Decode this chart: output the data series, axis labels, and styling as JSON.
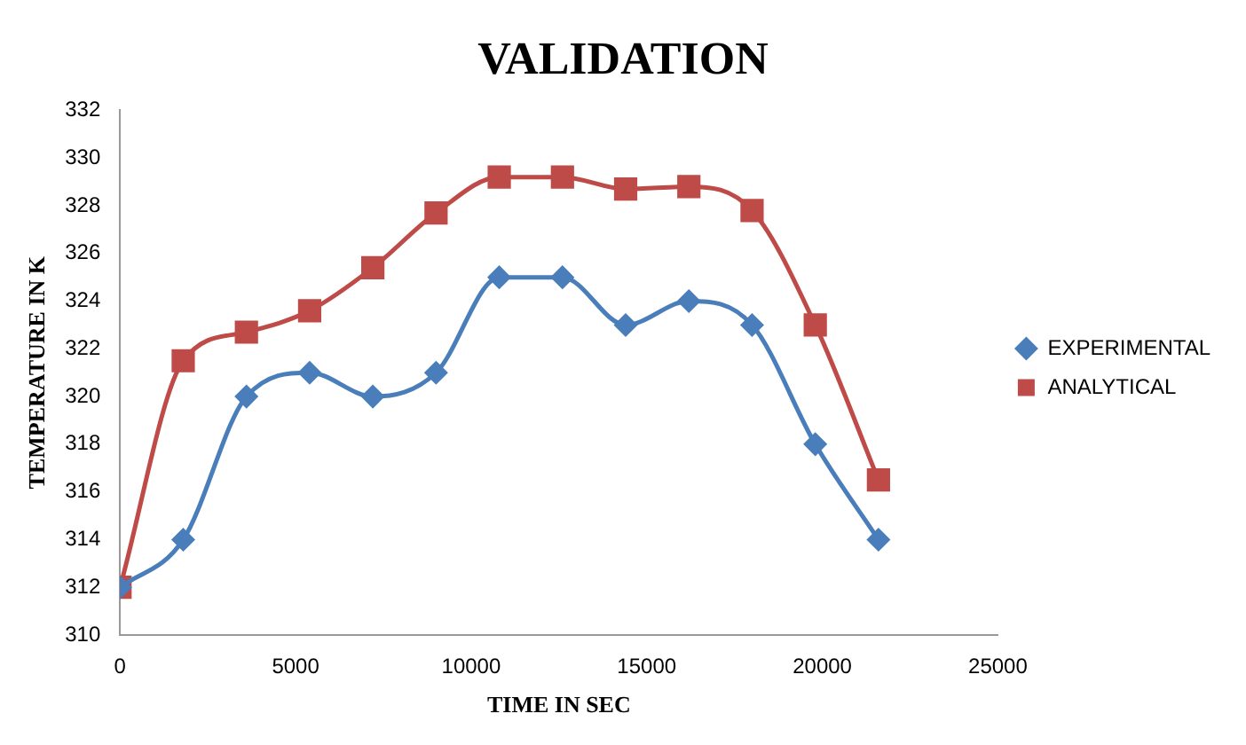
{
  "chart_data": {
    "type": "line",
    "title": "VALIDATION",
    "xlabel": "TIME IN SEC",
    "ylabel": "TEMPERATURE IN K",
    "x": [
      0,
      1800,
      3600,
      5400,
      7200,
      9000,
      10800,
      12600,
      14400,
      16200,
      18000,
      19800,
      21600
    ],
    "series": [
      {
        "name": "EXPERIMENTAL",
        "color": "#4a7ebb",
        "marker": "diamond",
        "values": [
          312,
          314,
          320,
          321,
          320,
          321,
          325,
          325,
          323,
          324,
          323,
          318,
          314
        ]
      },
      {
        "name": "ANALYTICAL",
        "color": "#be4b48",
        "marker": "square",
        "values": [
          312,
          321.5,
          322.7,
          323.6,
          325.4,
          327.7,
          329.2,
          329.2,
          328.7,
          328.8,
          327.8,
          323,
          316.5
        ]
      }
    ],
    "xlim": [
      0,
      25000
    ],
    "xticks": [
      0,
      5000,
      10000,
      15000,
      20000,
      25000
    ],
    "ylim": [
      310,
      332
    ],
    "yticks": [
      310,
      312,
      314,
      316,
      318,
      320,
      322,
      324,
      326,
      328,
      330,
      332
    ],
    "grid": false,
    "legend": "right",
    "line_style": "solid"
  }
}
